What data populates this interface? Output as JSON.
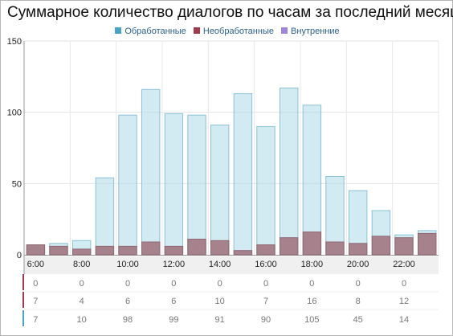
{
  "title": "Суммарное количество диалогов по часам за последний месяц",
  "legend": [
    {
      "name": "Обработанные",
      "color": "#4aa3c7"
    },
    {
      "name": "Необработанные",
      "color": "#9e3b4d"
    },
    {
      "name": "Внутренние",
      "color": "#9f86d6"
    }
  ],
  "chart_data": {
    "type": "bar",
    "stacked": "overlapped",
    "title": "Суммарное количество диалогов по часам за последний месяц",
    "categories": [
      "6:00",
      "7:00",
      "8:00",
      "9:00",
      "10:00",
      "11:00",
      "12:00",
      "13:00",
      "14:00",
      "15:00",
      "16:00",
      "17:00",
      "18:00",
      "19:00",
      "20:00",
      "21:00",
      "22:00",
      "23:00"
    ],
    "tick_labels": [
      "6:00",
      "8:00",
      "10:00",
      "12:00",
      "14:00",
      "16:00",
      "18:00",
      "20:00",
      "22:00"
    ],
    "ylim": [
      0,
      150
    ],
    "yticks": [
      0,
      50,
      100,
      150
    ],
    "grid": true,
    "legend_position": "top",
    "series": [
      {
        "name": "Обработанные",
        "color": "#add8e6",
        "values": [
          7,
          8,
          10,
          54,
          98,
          116,
          99,
          98,
          91,
          113,
          90,
          117,
          105,
          55,
          45,
          31,
          14,
          17
        ]
      },
      {
        "name": "Необработанные",
        "color": "#a37c86",
        "values": [
          7,
          6,
          4,
          6,
          6,
          9,
          6,
          11,
          10,
          3,
          7,
          12,
          16,
          9,
          8,
          13,
          12,
          15
        ]
      },
      {
        "name": "Внутренние",
        "color": "#9f86d6",
        "values": [
          0,
          0,
          0,
          0,
          0,
          0,
          0,
          0,
          0,
          0,
          0,
          0,
          0,
          0,
          0,
          0,
          0,
          0
        ]
      }
    ],
    "table": {
      "rows": [
        {
          "series": "Внутренние",
          "marker_color": "#9e3b4d",
          "values": [
            "0",
            "0",
            "0",
            "0",
            "0",
            "0",
            "0",
            "0",
            "0"
          ]
        },
        {
          "series": "Необработанные",
          "marker_color": "#9e3b4d",
          "values": [
            "7",
            "4",
            "6",
            "6",
            "10",
            "7",
            "16",
            "8",
            "12"
          ]
        },
        {
          "series": "Обработанные",
          "marker_color": "#4aa3c7",
          "values": [
            "7",
            "10",
            "98",
            "99",
            "91",
            "90",
            "105",
            "45",
            "14"
          ]
        }
      ]
    }
  }
}
